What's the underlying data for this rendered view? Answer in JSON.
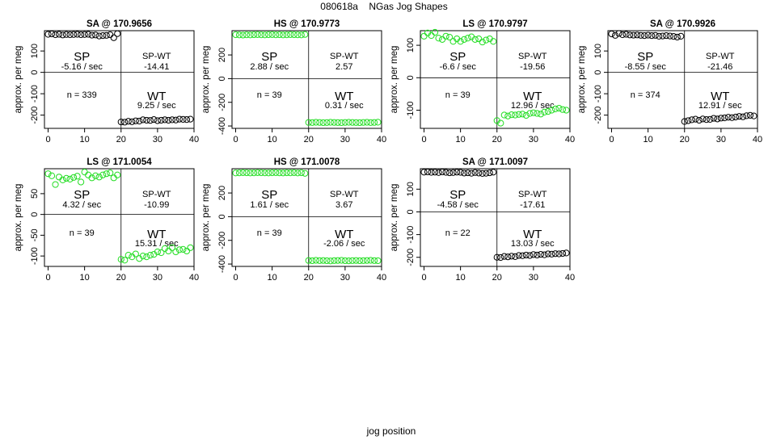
{
  "figure": {
    "title": "080618a    NGas Jog Shapes",
    "xlabel": "jog position"
  },
  "colors": {
    "black_points": "#000000",
    "green_points": "#22dd22",
    "frame": "#000000"
  },
  "chart_data": [
    {
      "type": "scatter",
      "title": "SA @ 170.9656",
      "ylabel": "approx. per meg",
      "x_ticks": [
        0,
        10,
        20,
        30,
        40
      ],
      "y_ticks": [
        -200,
        -100,
        0,
        100
      ],
      "xlim": [
        -1,
        40
      ],
      "ylim": [
        -262,
        195
      ],
      "point_color": "black",
      "sp_rate": "-5.16 / sec",
      "sp_wt": "-14.41",
      "n": "n = 339",
      "wt_rate": "9.25 / sec",
      "sp_values": [
        178,
        180,
        176,
        178,
        175,
        177,
        176,
        177,
        178,
        176,
        177,
        178,
        174,
        175,
        170,
        172,
        173,
        176,
        162,
        181
      ],
      "wt_values": [
        -232,
        -233,
        -229,
        -231,
        -227,
        -228,
        -222,
        -224,
        -225,
        -221,
        -226,
        -224,
        -222,
        -224,
        -222,
        -223,
        -219,
        -220,
        -221,
        -219
      ]
    },
    {
      "type": "scatter",
      "title": "HS @ 170.9773",
      "ylabel": "approx. per meg",
      "x_ticks": [
        0,
        10,
        20,
        30,
        40
      ],
      "y_ticks": [
        -400,
        -200,
        0,
        200
      ],
      "xlim": [
        -1,
        40
      ],
      "ylim": [
        -420,
        405
      ],
      "point_color": "green",
      "sp_rate": "2.88 / sec",
      "sp_wt": "2.57",
      "n": "n = 39",
      "wt_rate": "0.31 / sec",
      "sp_values": [
        371,
        369,
        368,
        370,
        369,
        371,
        372,
        370,
        369,
        371,
        372,
        370,
        371,
        369,
        370,
        372,
        371,
        370,
        369,
        373
      ],
      "wt_values": [
        -370,
        -371,
        -369,
        -370,
        -372,
        -371,
        -369,
        -370,
        -371,
        -372,
        -370,
        -369,
        -370,
        -371,
        -372,
        -370,
        -369,
        -371,
        -370,
        -368
      ]
    },
    {
      "type": "scatter",
      "title": "LS @ 170.9797",
      "ylabel": "approx. per meg",
      "x_ticks": [
        0,
        10,
        20,
        30,
        40
      ],
      "y_ticks": [
        -100,
        0,
        100
      ],
      "xlim": [
        -1,
        40
      ],
      "ylim": [
        -156,
        145
      ],
      "point_color": "green",
      "sp_rate": "-6.6 / sec",
      "sp_wt": "-19.56",
      "n": "n = 39",
      "wt_rate": "12.96 / sec",
      "sp_values": [
        128,
        138,
        130,
        140,
        122,
        118,
        128,
        125,
        112,
        120,
        112,
        118,
        122,
        126,
        118,
        120,
        110,
        116,
        120,
        112
      ],
      "wt_values": [
        -132,
        -140,
        -115,
        -118,
        -114,
        -115,
        -113,
        -112,
        -116,
        -110,
        -108,
        -110,
        -112,
        -106,
        -104,
        -100,
        -96,
        -94,
        -98,
        -100
      ]
    },
    {
      "type": "scatter",
      "title": "SA @ 170.9926",
      "ylabel": "approx. per meg",
      "x_ticks": [
        0,
        10,
        20,
        30,
        40
      ],
      "y_ticks": [
        -200,
        -100,
        0,
        100
      ],
      "xlim": [
        -1,
        40
      ],
      "ylim": [
        -262,
        195
      ],
      "point_color": "black",
      "sp_rate": "-8.55 / sec",
      "sp_wt": "-21.46",
      "n": "n = 374",
      "wt_rate": "12.91 / sec",
      "sp_values": [
        180,
        173,
        182,
        176,
        178,
        175,
        174,
        175,
        173,
        172,
        174,
        172,
        173,
        169,
        170,
        172,
        170,
        168,
        165,
        169
      ],
      "wt_values": [
        -230,
        -226,
        -222,
        -219,
        -224,
        -218,
        -221,
        -220,
        -215,
        -218,
        -214,
        -213,
        -210,
        -212,
        -209,
        -206,
        -208,
        -203,
        -201,
        -204
      ]
    },
    {
      "type": "scatter",
      "title": "LS @ 171.0054",
      "ylabel": "approx. per meg",
      "x_ticks": [
        0,
        10,
        20,
        30,
        40
      ],
      "y_ticks": [
        -100,
        -50,
        0,
        50
      ],
      "xlim": [
        -1,
        40
      ],
      "ylim": [
        -125,
        110
      ],
      "point_color": "green",
      "sp_rate": "4.32 / sec",
      "sp_wt": "-10.99",
      "n": "n = 39",
      "wt_rate": "15.31 / sec",
      "sp_values": [
        98,
        93,
        72,
        90,
        83,
        87,
        85,
        89,
        92,
        78,
        102,
        95,
        88,
        93,
        90,
        95,
        98,
        100,
        88,
        95
      ],
      "wt_values": [
        -108,
        -110,
        -98,
        -102,
        -95,
        -106,
        -100,
        -102,
        -98,
        -96,
        -90,
        -92,
        -82,
        -88,
        -80,
        -90,
        -85,
        -84,
        -88,
        -80
      ]
    },
    {
      "type": "scatter",
      "title": "HS @ 171.0078",
      "ylabel": "approx. per meg",
      "x_ticks": [
        0,
        10,
        20,
        30,
        40
      ],
      "y_ticks": [
        -400,
        -200,
        0,
        200
      ],
      "xlim": [
        -1,
        40
      ],
      "ylim": [
        -420,
        405
      ],
      "point_color": "green",
      "sp_rate": "1.61 / sec",
      "sp_wt": "3.67",
      "n": "n = 39",
      "wt_rate": "-2.06 / sec",
      "sp_values": [
        369,
        370,
        372,
        371,
        369,
        370,
        372,
        371,
        370,
        369,
        371,
        372,
        370,
        369,
        371,
        370,
        372,
        369,
        371,
        366
      ],
      "wt_values": [
        -370,
        -372,
        -369,
        -371,
        -370,
        -372,
        -374,
        -371,
        -370,
        -369,
        -372,
        -373,
        -371,
        -370,
        -372,
        -371,
        -370,
        -369,
        -371,
        -372
      ]
    },
    {
      "type": "scatter",
      "title": "SA @ 171.0097",
      "ylabel": "approx. per meg",
      "x_ticks": [
        0,
        10,
        20,
        30,
        40
      ],
      "y_ticks": [
        -200,
        -100,
        0,
        100
      ],
      "xlim": [
        -1,
        40
      ],
      "ylim": [
        -240,
        190
      ],
      "point_color": "black",
      "sp_rate": "-4.58 / sec",
      "sp_wt": "-17.61",
      "n": "n = 22",
      "wt_rate": "13.03 / sec",
      "sp_values": [
        175,
        176,
        174,
        175,
        173,
        176,
        174,
        172,
        173,
        175,
        174,
        171,
        172,
        170,
        173,
        171,
        169,
        170,
        172,
        175
      ],
      "wt_values": [
        -200,
        -201,
        -196,
        -198,
        -195,
        -197,
        -192,
        -193,
        -190,
        -192,
        -188,
        -190,
        -187,
        -189,
        -185,
        -186,
        -184,
        -185,
        -183,
        -181
      ]
    }
  ]
}
